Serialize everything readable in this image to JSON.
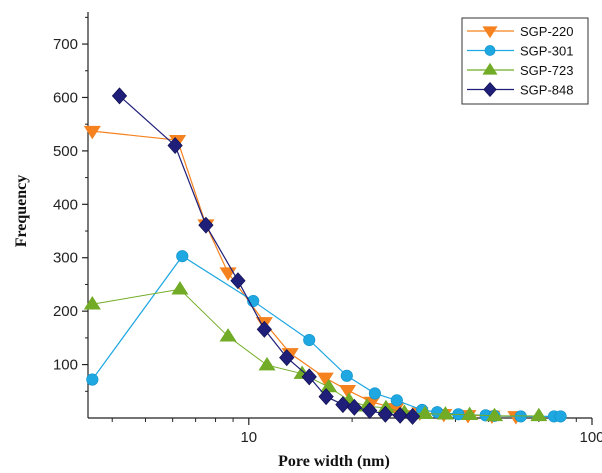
{
  "chart_data": {
    "type": "line",
    "xlabel": "Pore width (nm)",
    "ylabel": "Frequency",
    "x_scale": "log",
    "xlim": [
      3.4,
      100
    ],
    "ylim": [
      0,
      760
    ],
    "x_ticks": [
      10,
      100
    ],
    "x_tick_labels": [
      "10",
      "100"
    ],
    "y_ticks": [
      100,
      200,
      300,
      400,
      500,
      600,
      700
    ],
    "y_tick_labels": [
      "100",
      "200",
      "300",
      "400",
      "500",
      "600",
      "700"
    ],
    "grid": false,
    "legend_position": "top-right",
    "series": [
      {
        "name": "SGP-220",
        "color": "#F5821F",
        "marker": "triangle-down",
        "x": [
          3.5,
          6.2,
          7.5,
          8.7,
          11.1,
          13.2,
          16.7,
          19.4,
          22.8,
          26.8,
          31.5,
          37.0,
          43.5,
          51.1,
          60.0
        ],
        "y": [
          537,
          520,
          362,
          272,
          179,
          121,
          75,
          52,
          30,
          18,
          10,
          7,
          5,
          4,
          3
        ]
      },
      {
        "name": "SGP-301",
        "color": "#1EA7E1",
        "marker": "circle",
        "x": [
          3.5,
          6.4,
          10.3,
          15.0,
          19.3,
          23.3,
          27.0,
          32.0,
          35.4,
          40.8,
          49.0,
          52.0,
          62.0,
          77.5,
          81.0
        ],
        "y": [
          72,
          303,
          219,
          146,
          79,
          46,
          33,
          15,
          11,
          7,
          5,
          4,
          3,
          3,
          3
        ]
      },
      {
        "name": "SGP-723",
        "color": "#72AC26",
        "marker": "triangle-up",
        "x": [
          3.5,
          6.3,
          8.7,
          11.3,
          14.3,
          17.1,
          19.6,
          22.1,
          25.1,
          28.4,
          32.6,
          37.4,
          44.0,
          52.0,
          70.0
        ],
        "y": [
          213,
          241,
          153,
          99,
          83,
          58,
          33,
          22,
          19,
          10,
          8,
          7,
          6,
          4,
          4
        ]
      },
      {
        "name": "SGP-848",
        "color": "#1F1F7A",
        "marker": "diamond",
        "x": [
          4.2,
          6.1,
          7.5,
          9.3,
          11.1,
          12.9,
          15.0,
          16.8,
          18.8,
          20.3,
          22.5,
          25.0,
          27.6,
          30.0
        ],
        "y": [
          603,
          510,
          361,
          257,
          166,
          113,
          77,
          40,
          25,
          20,
          14,
          7,
          5,
          3
        ]
      }
    ]
  }
}
